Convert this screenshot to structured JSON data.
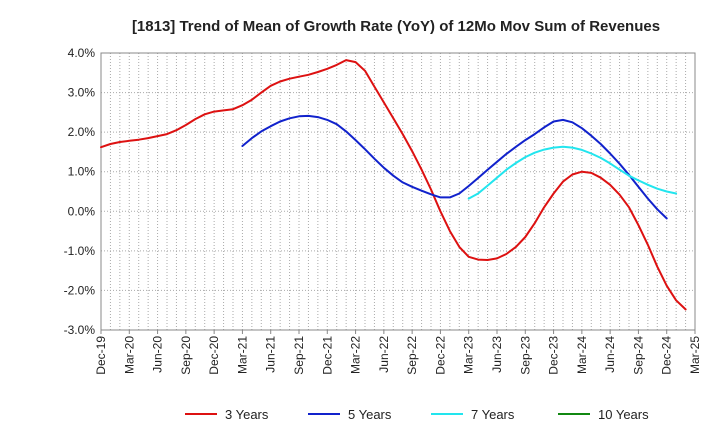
{
  "chart_data": {
    "type": "line",
    "title": "[1813]  Trend of Mean of Growth Rate (YoY) of 12Mo Mov Sum of Revenues",
    "xlabel": "",
    "ylabel": "",
    "ylim": [
      -3.0,
      4.0
    ],
    "yticks": [
      4.0,
      3.0,
      2.0,
      1.0,
      0.0,
      -1.0,
      -2.0,
      -3.0
    ],
    "ytick_labels": [
      "4.0%",
      "3.0%",
      "2.0%",
      "1.0%",
      "0.0%",
      "-1.0%",
      "-2.0%",
      "-3.0%"
    ],
    "xtick_labels": [
      "Dec-19",
      "Mar-20",
      "Jun-20",
      "Sep-20",
      "Dec-20",
      "Mar-21",
      "Jun-21",
      "Sep-21",
      "Dec-21",
      "Mar-22",
      "Jun-22",
      "Sep-22",
      "Dec-22",
      "Mar-23",
      "Jun-23",
      "Sep-23",
      "Dec-23",
      "Mar-24",
      "Jun-24",
      "Sep-24",
      "Dec-24",
      "Mar-25"
    ],
    "x_month_count": 63,
    "grid": true,
    "legend_position": "bottom",
    "series": [
      {
        "name": "3 Years",
        "color": "#dd1111",
        "start_index": 0,
        "values": [
          1.62,
          1.7,
          1.75,
          1.78,
          1.81,
          1.85,
          1.9,
          1.95,
          2.05,
          2.18,
          2.33,
          2.45,
          2.52,
          2.55,
          2.58,
          2.68,
          2.82,
          3.0,
          3.17,
          3.28,
          3.35,
          3.4,
          3.45,
          3.52,
          3.6,
          3.7,
          3.82,
          3.77,
          3.55,
          3.15,
          2.75,
          2.35,
          1.95,
          1.52,
          1.05,
          0.55,
          0.0,
          -0.5,
          -0.9,
          -1.15,
          -1.22,
          -1.23,
          -1.19,
          -1.08,
          -0.9,
          -0.65,
          -0.3,
          0.1,
          0.45,
          0.75,
          0.93,
          1.0,
          0.97,
          0.85,
          0.67,
          0.42,
          0.1,
          -0.35,
          -0.85,
          -1.4,
          -1.88,
          -2.25,
          -2.48
        ]
      },
      {
        "name": "5 Years",
        "color": "#1122cc",
        "start_index": 15,
        "values": [
          1.65,
          1.85,
          2.02,
          2.15,
          2.27,
          2.35,
          2.4,
          2.41,
          2.38,
          2.31,
          2.2,
          2.02,
          1.8,
          1.57,
          1.33,
          1.1,
          0.9,
          0.73,
          0.62,
          0.52,
          0.43,
          0.35,
          0.35,
          0.45,
          0.64,
          0.84,
          1.05,
          1.25,
          1.45,
          1.63,
          1.8,
          1.95,
          2.12,
          2.27,
          2.31,
          2.25,
          2.1,
          1.91,
          1.7,
          1.46,
          1.2,
          0.92,
          0.62,
          0.32,
          0.05,
          -0.18
        ]
      },
      {
        "name": "7 Years",
        "color": "#22e5ee",
        "start_index": 39,
        "values": [
          0.32,
          0.45,
          0.65,
          0.85,
          1.05,
          1.22,
          1.37,
          1.48,
          1.56,
          1.61,
          1.63,
          1.61,
          1.55,
          1.46,
          1.35,
          1.21,
          1.05,
          0.9,
          0.78,
          0.67,
          0.57,
          0.5,
          0.45
        ]
      },
      {
        "name": "10 Years",
        "color": "#118811",
        "start_index": 0,
        "values": []
      }
    ]
  }
}
